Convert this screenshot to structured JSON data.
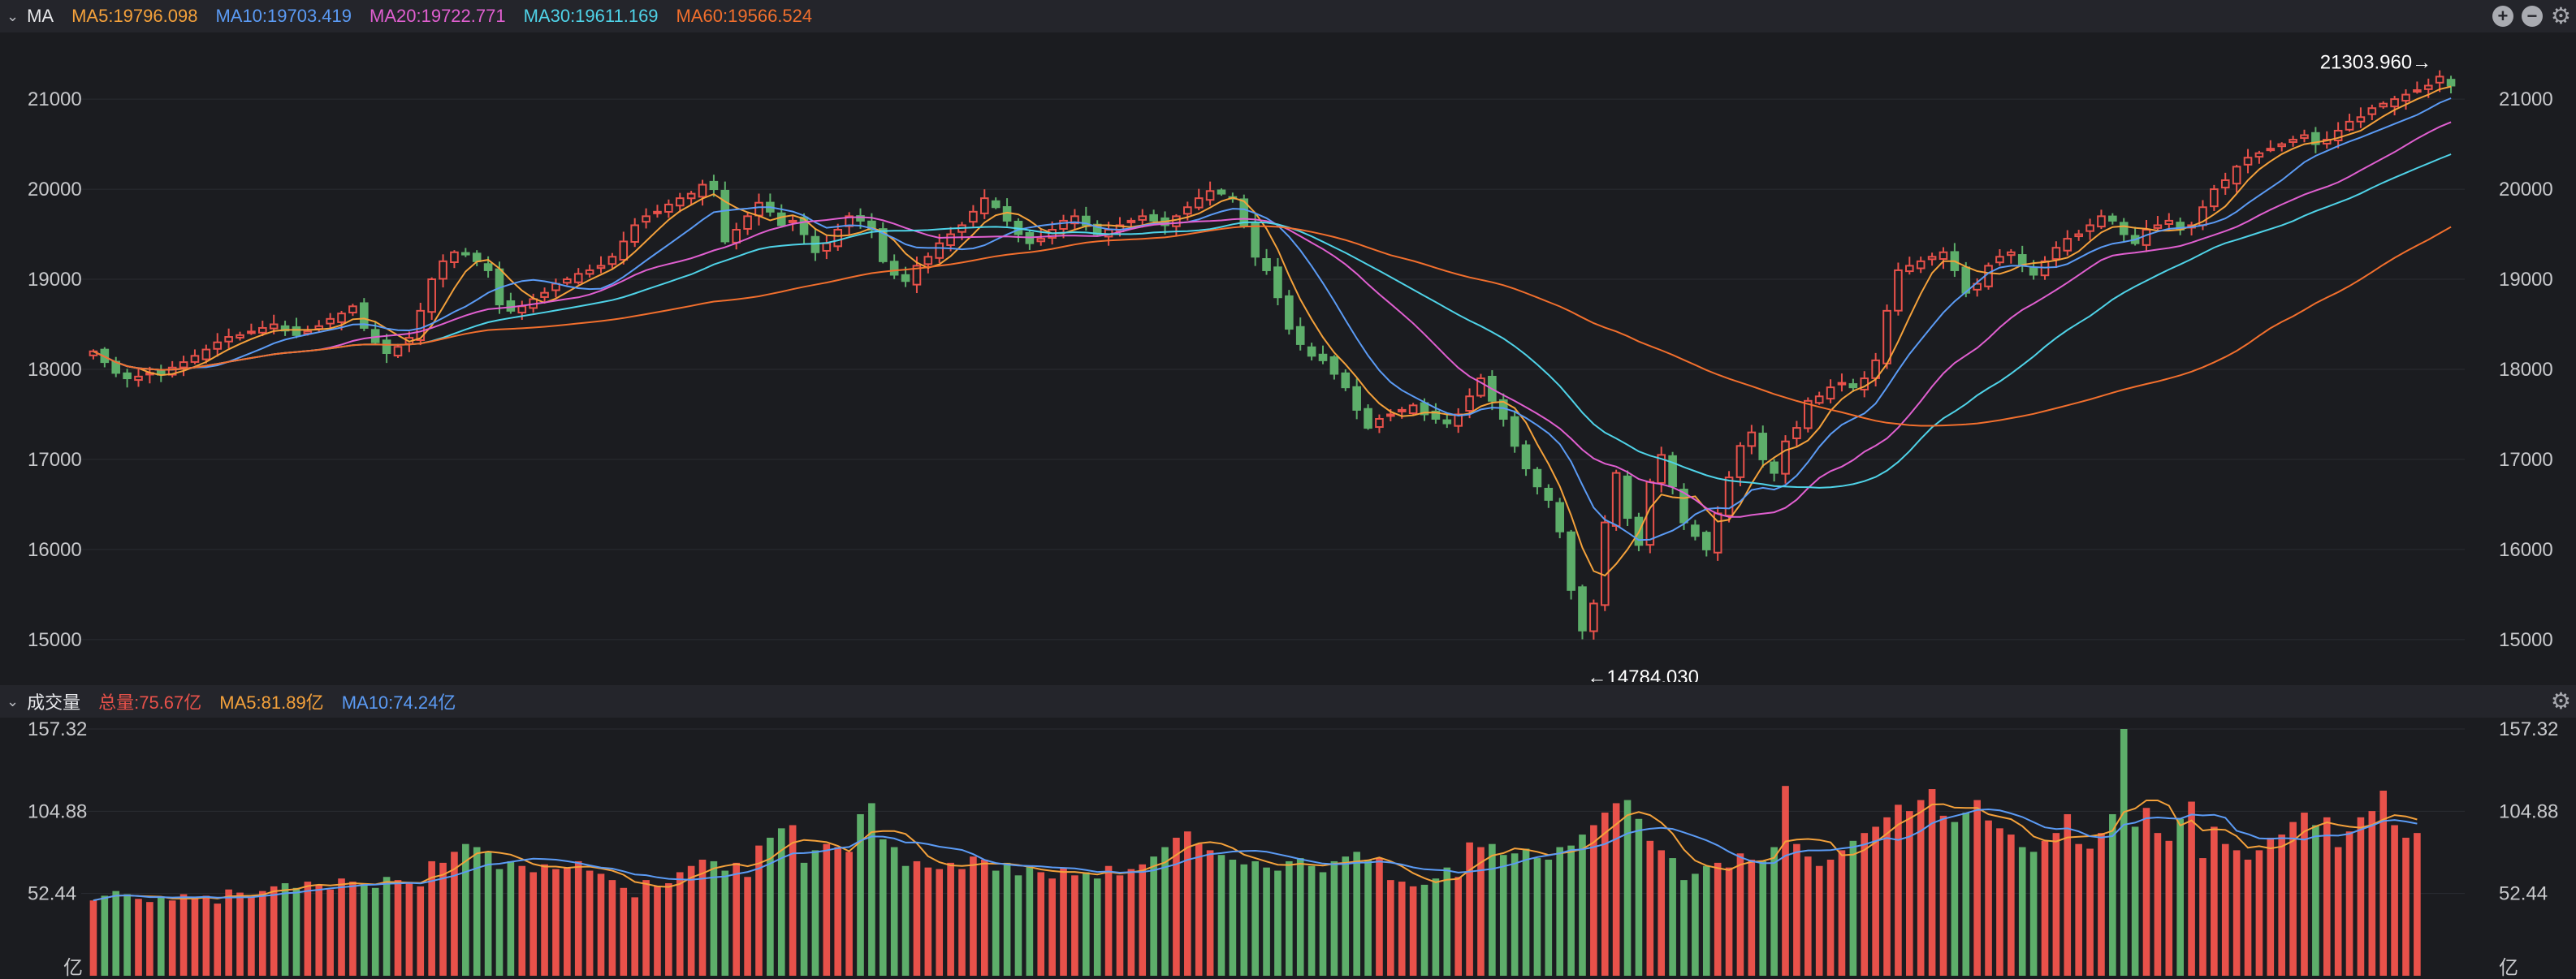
{
  "price_panel": {
    "label": "MA",
    "legend": [
      {
        "text": "MA5:19796.098",
        "color": "#f4a13b"
      },
      {
        "text": "MA10:19703.419",
        "color": "#5b9bf5"
      },
      {
        "text": "MA20:19722.771",
        "color": "#e05fd0"
      },
      {
        "text": "MA30:19611.169",
        "color": "#4fd3e8"
      },
      {
        "text": "MA60:19566.524",
        "color": "#f26f2d"
      }
    ],
    "icons": [
      "add-icon",
      "minus-icon",
      "gear-icon"
    ],
    "high_label": "21303.960→",
    "low_label": "←14784.030"
  },
  "volume_panel": {
    "label": "成交量",
    "legend": [
      {
        "text": "总量:75.67亿",
        "color": "#e8514a"
      },
      {
        "text": "MA5:81.89亿",
        "color": "#f4a13b"
      },
      {
        "text": "MA10:74.24亿",
        "color": "#5b9bf5"
      }
    ],
    "unit": "亿"
  },
  "chart_data": [
    {
      "type": "candlestick",
      "y_ticks": [
        15000,
        16000,
        17000,
        18000,
        19000,
        20000,
        21000
      ],
      "ylim": [
        14620,
        21650
      ],
      "grid": true,
      "axis_position": "left and right",
      "up_color": "#e8514a",
      "down_color": "#5dae6a",
      "annotations": {
        "high": 21303.96,
        "low": 14784.03
      },
      "close": [
        18200,
        18080,
        17960,
        17900,
        17920,
        17960,
        17940,
        18020,
        18080,
        18150,
        18220,
        18300,
        18360,
        18380,
        18420,
        18460,
        18500,
        18430,
        18380,
        18420,
        18480,
        18560,
        18620,
        18700,
        18460,
        18300,
        18180,
        18250,
        18350,
        18650,
        19000,
        19200,
        19300,
        19280,
        19200,
        19100,
        18720,
        18650,
        18700,
        18780,
        18850,
        18950,
        19000,
        19060,
        19100,
        19150,
        19250,
        19420,
        19600,
        19700,
        19750,
        19830,
        19900,
        19950,
        20050,
        20000,
        19420,
        19550,
        19700,
        19850,
        19750,
        19600,
        19650,
        19500,
        19300,
        19400,
        19550,
        19700,
        19650,
        19550,
        19200,
        19050,
        18980,
        19150,
        19250,
        19400,
        19500,
        19600,
        19750,
        19900,
        19800,
        19650,
        19500,
        19400,
        19450,
        19550,
        19650,
        19700,
        19600,
        19500,
        19550,
        19600,
        19650,
        19700,
        19650,
        19600,
        19700,
        19800,
        19900,
        19980,
        19950,
        19900,
        19600,
        19250,
        19100,
        18800,
        18450,
        18280,
        18150,
        18100,
        17950,
        17800,
        17550,
        17350,
        17450,
        17500,
        17550,
        17600,
        17500,
        17450,
        17400,
        17500,
        17700,
        17900,
        17650,
        17450,
        17150,
        16900,
        16700,
        16550,
        16200,
        15550,
        15100,
        15400,
        16300,
        16850,
        16350,
        16050,
        16750,
        17050,
        16700,
        16300,
        16150,
        16000,
        16400,
        16800,
        17150,
        17300,
        17000,
        16850,
        17200,
        17350,
        17650,
        17700,
        17800,
        17850,
        17800,
        17900,
        18100,
        18650,
        19100,
        19150,
        19200,
        19250,
        19300,
        19100,
        18850,
        18950,
        19150,
        19250,
        19300,
        19150,
        19050,
        19200,
        19350,
        19450,
        19500,
        19600,
        19700,
        19650,
        19500,
        19400,
        19550,
        19600,
        19650,
        19550,
        19600,
        19800,
        20000,
        20100,
        20250,
        20350,
        20400,
        20450,
        20500,
        20550,
        20600,
        20500,
        20550,
        20650,
        20750,
        20800,
        20900,
        20950,
        21000,
        21050,
        21100,
        21150,
        21250,
        21150
      ],
      "series": [
        {
          "name": "MA5",
          "color": "#f4a13b",
          "period": 5
        },
        {
          "name": "MA10",
          "color": "#5b9bf5",
          "period": 10
        },
        {
          "name": "MA20",
          "color": "#e05fd0",
          "period": 20
        },
        {
          "name": "MA30",
          "color": "#4fd3e8",
          "period": 30
        },
        {
          "name": "MA60",
          "color": "#f26f2d",
          "period": 60
        }
      ]
    },
    {
      "type": "bar",
      "y_ticks": [
        "52.44",
        "104.88",
        "157.32"
      ],
      "ylim": [
        0,
        157.32
      ],
      "values": [
        48,
        51,
        54,
        52,
        49,
        47,
        50,
        48,
        52,
        49,
        51,
        46,
        55,
        53,
        50,
        54,
        57,
        59,
        56,
        60,
        58,
        55,
        62,
        60,
        58,
        56,
        63,
        61,
        59,
        57,
        73,
        72,
        79,
        84,
        82,
        79,
        68,
        73,
        70,
        66,
        71,
        68,
        69,
        73,
        67,
        65,
        61,
        56,
        50,
        61,
        57,
        59,
        66,
        70,
        74,
        73,
        67,
        72,
        63,
        83,
        88,
        94,
        96,
        72,
        80,
        84,
        82,
        79,
        103,
        110,
        87,
        82,
        70,
        73,
        69,
        68,
        72,
        68,
        76,
        74,
        67,
        72,
        64,
        70,
        66,
        62,
        69,
        64,
        66,
        62,
        70,
        64,
        68,
        71,
        76,
        82,
        88,
        92,
        84,
        80,
        77,
        74,
        71,
        73,
        69,
        67,
        73,
        75,
        70,
        66,
        73,
        76,
        79,
        74,
        75,
        61,
        60,
        57,
        58,
        62,
        69,
        63,
        85,
        82,
        84,
        77,
        78,
        81,
        75,
        74,
        82,
        83,
        90,
        96,
        104,
        110,
        112,
        100,
        86,
        80,
        75,
        61,
        65,
        70,
        72,
        69,
        78,
        74,
        73,
        82,
        121,
        84,
        76,
        70,
        74,
        80,
        86,
        91,
        95,
        101,
        109,
        105,
        112,
        119,
        102,
        98,
        104,
        112,
        99,
        94,
        90,
        82,
        79,
        86,
        91,
        103,
        84,
        81,
        91,
        103,
        163,
        95,
        107,
        91,
        86,
        100,
        111,
        75,
        95,
        84,
        80,
        74,
        80,
        88,
        90,
        98,
        104,
        96,
        101,
        82,
        92,
        101,
        105,
        118,
        96,
        88,
        91
      ],
      "ma5_color": "#f4a13b",
      "ma10_color": "#5b9bf5"
    }
  ]
}
